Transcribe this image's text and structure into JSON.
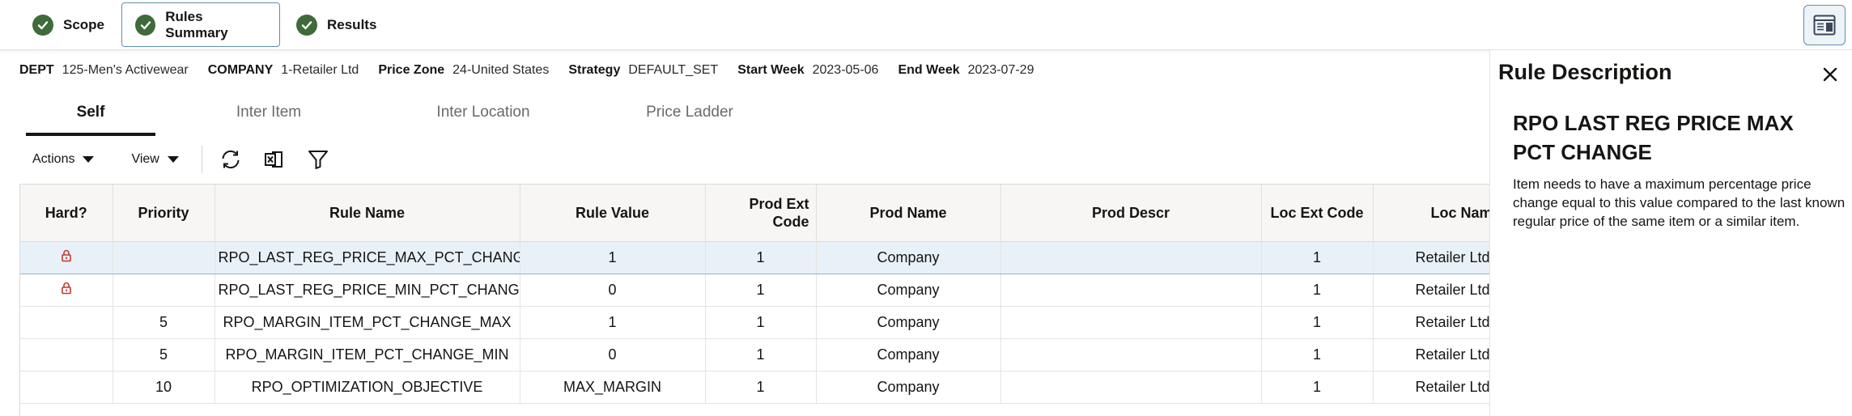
{
  "train": {
    "steps": [
      {
        "label": "Scope"
      },
      {
        "label": "Rules Summary"
      },
      {
        "label": "Results"
      }
    ]
  },
  "info": {
    "dept_label": "DEPT",
    "dept_value": "125-Men's Activewear",
    "company_label": "COMPANY",
    "company_value": "1-Retailer Ltd",
    "zone_label": "Price Zone",
    "zone_value": "24-United States",
    "strategy_label": "Strategy",
    "strategy_value": "DEFAULT_SET",
    "start_label": "Start Week",
    "start_value": "2023-05-06",
    "end_label": "End Week",
    "end_value": "2023-07-29"
  },
  "tabs": [
    "Self",
    "Inter Item",
    "Inter Location",
    "Price Ladder"
  ],
  "toolbar": {
    "actions_label": "Actions",
    "view_label": "View"
  },
  "table": {
    "headers": {
      "hard": "Hard?",
      "priority": "Priority",
      "rule_name": "Rule Name",
      "rule_value": "Rule Value",
      "prod_ext_line1": "Prod Ext",
      "prod_ext_line2": "Code",
      "prod_name": "Prod Name",
      "prod_descr": "Prod Descr",
      "loc_ext": "Loc Ext Code",
      "loc_name": "Loc Name"
    },
    "rows": [
      {
        "hard": "lock",
        "priority": "",
        "rule_name": "RPO_LAST_REG_PRICE_MAX_PCT_CHANGE",
        "rule_value": "1",
        "prod_ext": "1",
        "prod_name": "Company",
        "prod_descr": "",
        "loc_ext": "1",
        "loc_name": "Retailer Ltd"
      },
      {
        "hard": "lock",
        "priority": "",
        "rule_name": "RPO_LAST_REG_PRICE_MIN_PCT_CHANGE",
        "rule_value": "0",
        "prod_ext": "1",
        "prod_name": "Company",
        "prod_descr": "",
        "loc_ext": "1",
        "loc_name": "Retailer Ltd"
      },
      {
        "hard": "",
        "priority": "5",
        "rule_name": "RPO_MARGIN_ITEM_PCT_CHANGE_MAX",
        "rule_value": "1",
        "prod_ext": "1",
        "prod_name": "Company",
        "prod_descr": "",
        "loc_ext": "1",
        "loc_name": "Retailer Ltd"
      },
      {
        "hard": "",
        "priority": "5",
        "rule_name": "RPO_MARGIN_ITEM_PCT_CHANGE_MIN",
        "rule_value": "0",
        "prod_ext": "1",
        "prod_name": "Company",
        "prod_descr": "",
        "loc_ext": "1",
        "loc_name": "Retailer Ltd"
      },
      {
        "hard": "",
        "priority": "10",
        "rule_name": "RPO_OPTIMIZATION_OBJECTIVE",
        "rule_value": "MAX_MARGIN",
        "prod_ext": "1",
        "prod_name": "Company",
        "prod_descr": "",
        "loc_ext": "1",
        "loc_name": "Retailer Ltd"
      }
    ]
  },
  "side_panel": {
    "title": "Rule Description",
    "rule_title": "RPO LAST REG PRICE MAX PCT CHANGE",
    "rule_description": "Item needs to have a maximum percentage price change equal to this value compared to the last known regular price of the same item or a similar item."
  },
  "colors": {
    "check": "#3f6b3a",
    "lock": "#c0392b",
    "selected_row": "#e8f1f7",
    "accent": "#3a4558"
  },
  "icons": [
    "check-icon",
    "panel-toggle-icon",
    "refresh-icon",
    "export-excel-icon",
    "filter-icon",
    "lock-icon",
    "close-icon",
    "caret-down-icon"
  ]
}
